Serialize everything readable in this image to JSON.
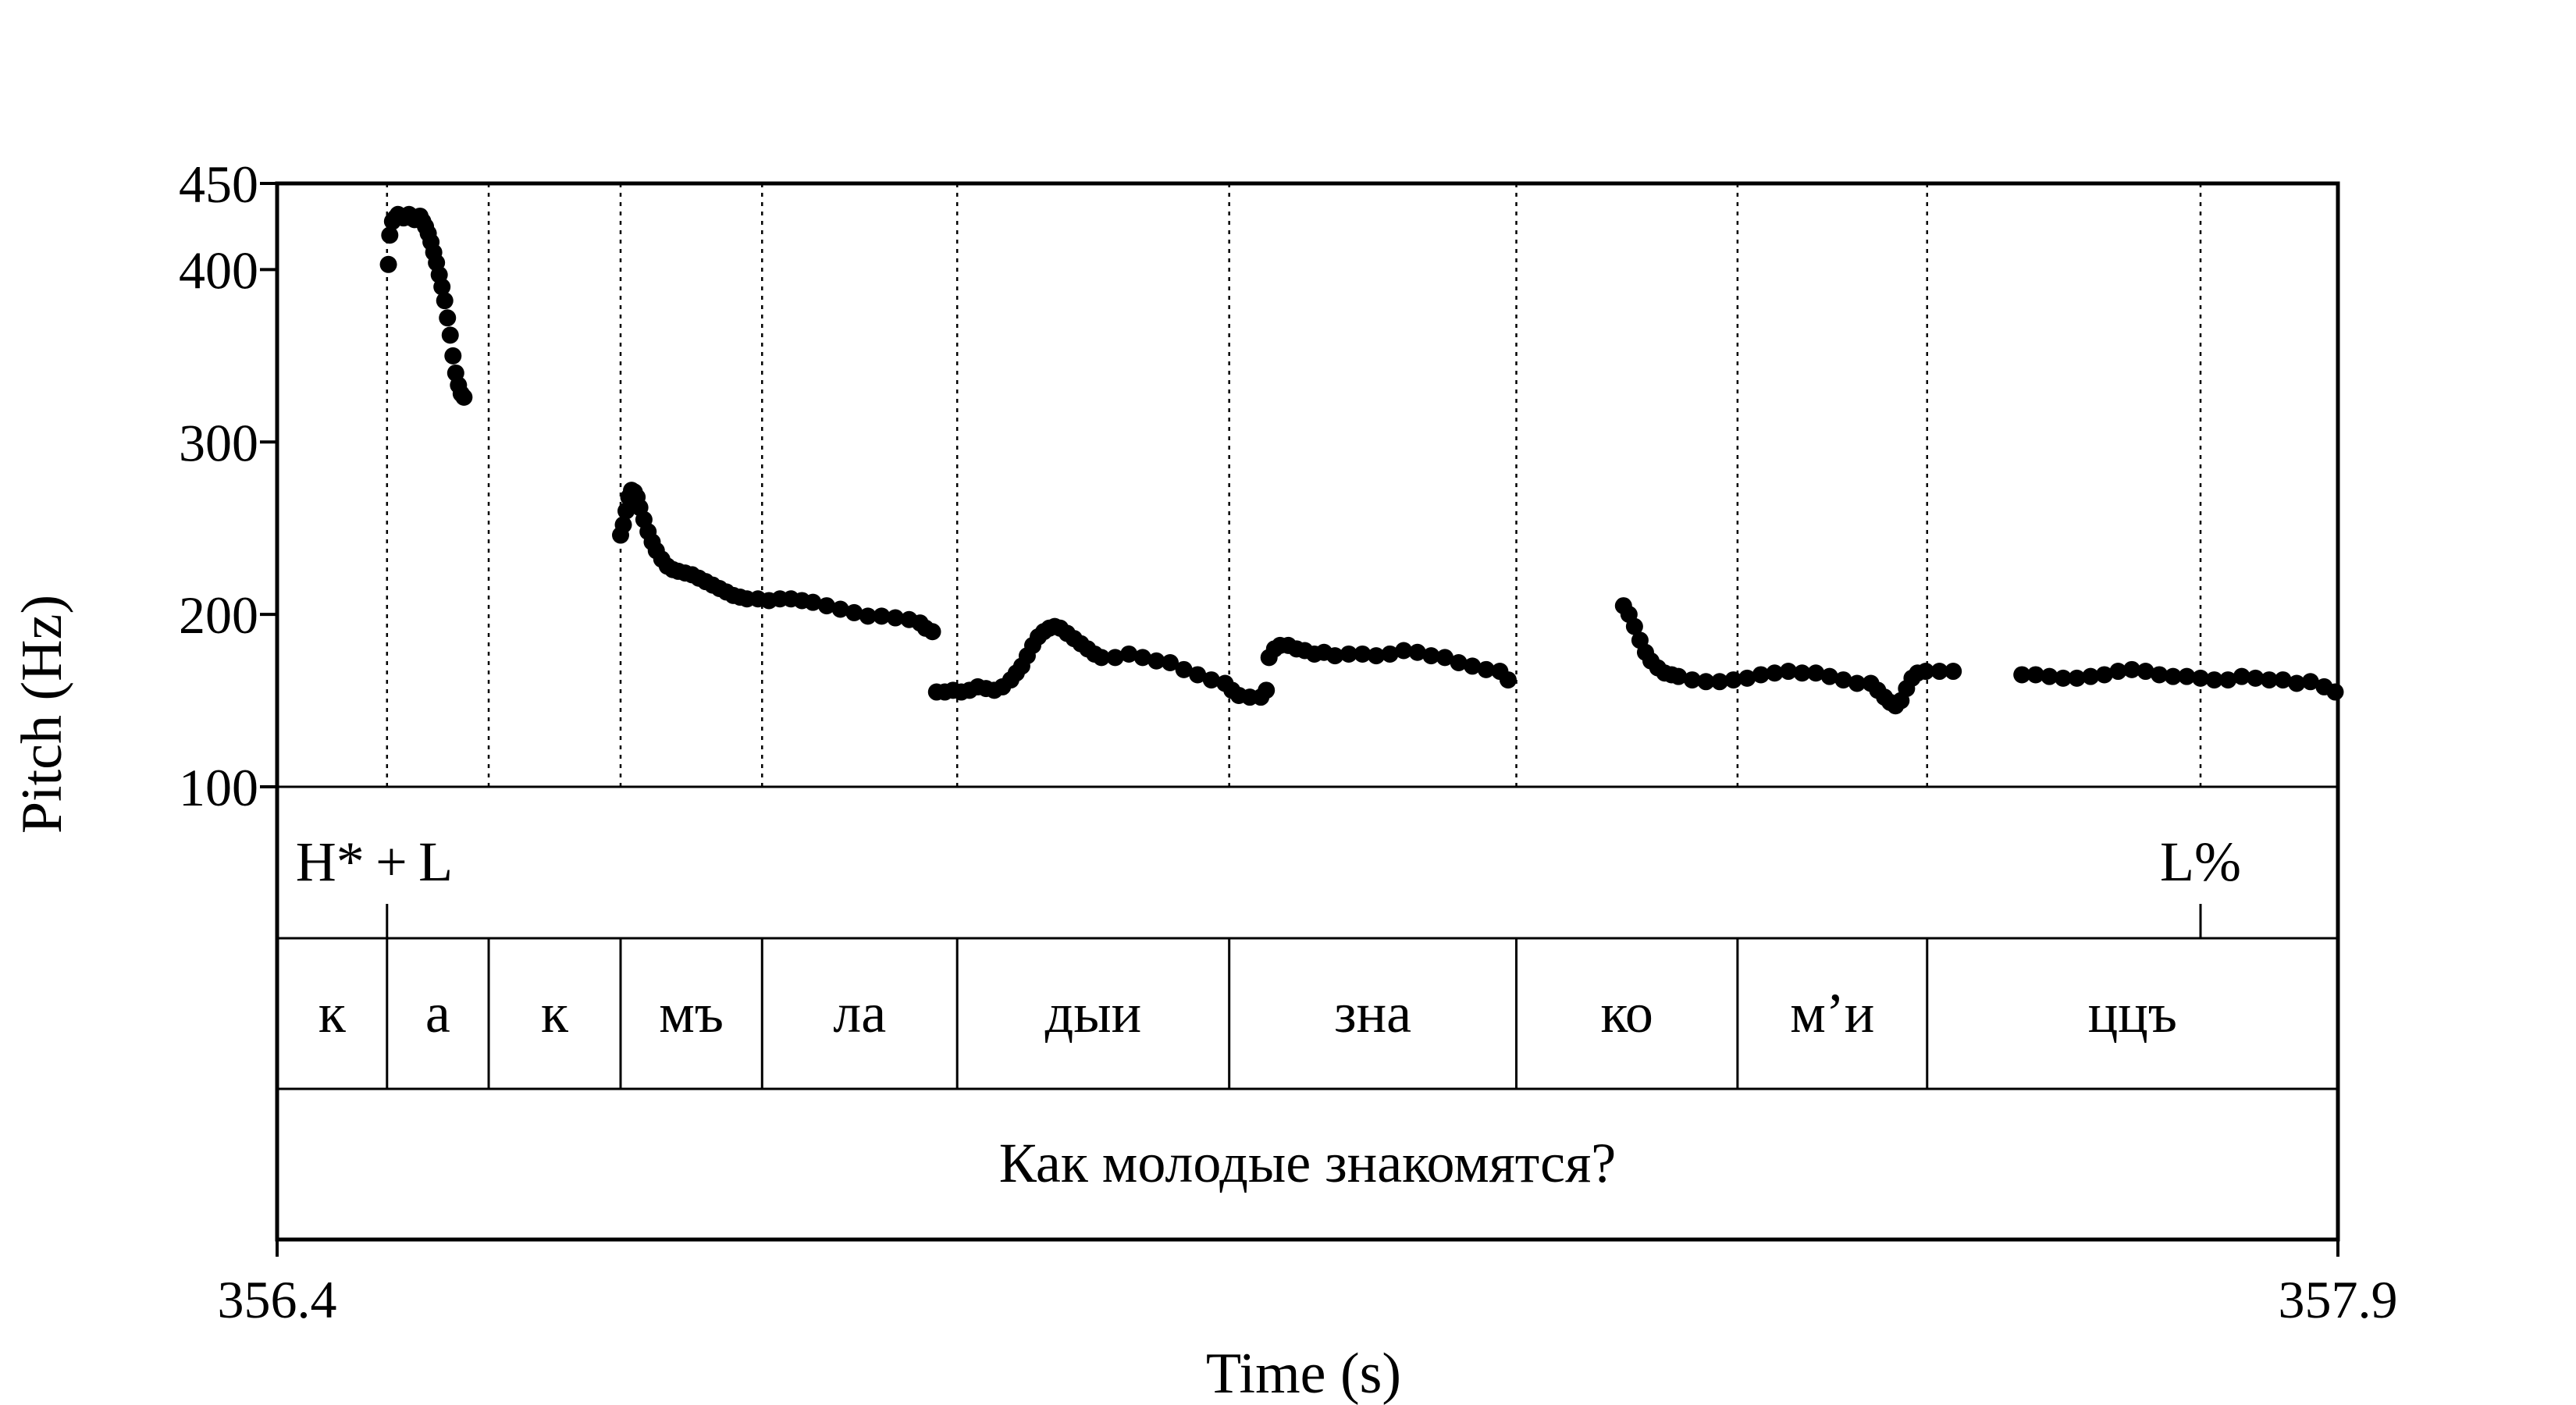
{
  "chart_data": {
    "type": "scatter",
    "title": "",
    "xlabel": "Time (s)",
    "ylabel": "Pitch (Hz)",
    "xlim": [
      356.4,
      357.9
    ],
    "ylim": [
      100,
      450
    ],
    "xtick_labels": [
      "356.4",
      "357.9"
    ],
    "ytick_labels": [
      "100",
      "200",
      "300",
      "400",
      "450"
    ],
    "yticks": [
      100,
      200,
      300,
      400,
      450
    ],
    "grid": false,
    "marker_color": "#000000",
    "series": [
      {
        "values": [
          [
            356.481,
            403
          ],
          [
            356.482,
            420
          ],
          [
            356.484,
            428
          ],
          [
            356.486,
            430
          ],
          [
            356.488,
            432
          ],
          [
            356.49,
            431
          ],
          [
            356.492,
            430
          ],
          [
            356.494,
            431
          ],
          [
            356.496,
            432
          ],
          [
            356.498,
            430
          ],
          [
            356.5,
            429
          ],
          [
            356.502,
            430
          ],
          [
            356.504,
            431
          ],
          [
            356.506,
            428
          ],
          [
            356.508,
            425
          ],
          [
            356.51,
            421
          ],
          [
            356.512,
            416
          ],
          [
            356.514,
            410
          ],
          [
            356.516,
            404
          ],
          [
            356.518,
            397
          ],
          [
            356.52,
            390
          ],
          [
            356.522,
            382
          ],
          [
            356.524,
            372
          ],
          [
            356.526,
            362
          ],
          [
            356.528,
            350
          ],
          [
            356.53,
            340
          ],
          [
            356.532,
            333
          ],
          [
            356.534,
            328
          ],
          [
            356.536,
            326
          ],
          [
            356.65,
            246
          ],
          [
            356.652,
            252
          ],
          [
            356.654,
            260
          ],
          [
            356.656,
            268
          ],
          [
            356.658,
            272
          ],
          [
            356.66,
            271
          ],
          [
            356.662,
            268
          ],
          [
            356.664,
            262
          ],
          [
            356.667,
            255
          ],
          [
            356.67,
            248
          ],
          [
            356.673,
            242
          ],
          [
            356.676,
            237
          ],
          [
            356.68,
            232
          ],
          [
            356.684,
            228
          ],
          [
            356.688,
            226
          ],
          [
            356.692,
            225
          ],
          [
            356.697,
            224
          ],
          [
            356.702,
            223
          ],
          [
            356.707,
            221
          ],
          [
            356.712,
            219
          ],
          [
            356.717,
            217
          ],
          [
            356.722,
            215
          ],
          [
            356.727,
            213
          ],
          [
            356.732,
            211
          ],
          [
            356.737,
            210
          ],
          [
            356.742,
            209
          ],
          [
            356.75,
            209
          ],
          [
            356.758,
            208
          ],
          [
            356.766,
            209
          ],
          [
            356.774,
            209
          ],
          [
            356.782,
            208
          ],
          [
            356.79,
            207
          ],
          [
            356.8,
            205
          ],
          [
            356.81,
            203
          ],
          [
            356.82,
            201
          ],
          [
            356.83,
            199
          ],
          [
            356.84,
            199
          ],
          [
            356.85,
            198
          ],
          [
            356.86,
            197
          ],
          [
            356.868,
            195
          ],
          [
            356.872,
            192
          ],
          [
            356.877,
            190
          ],
          [
            356.88,
            155
          ],
          [
            356.886,
            155
          ],
          [
            356.892,
            156
          ],
          [
            356.898,
            155
          ],
          [
            356.904,
            156
          ],
          [
            356.91,
            158
          ],
          [
            356.916,
            157
          ],
          [
            356.922,
            156
          ],
          [
            356.928,
            158
          ],
          [
            356.934,
            162
          ],
          [
            356.938,
            166
          ],
          [
            356.942,
            170
          ],
          [
            356.946,
            176
          ],
          [
            356.95,
            182
          ],
          [
            356.954,
            187
          ],
          [
            356.958,
            190
          ],
          [
            356.962,
            192
          ],
          [
            356.966,
            193
          ],
          [
            356.97,
            192
          ],
          [
            356.975,
            189
          ],
          [
            356.98,
            186
          ],
          [
            356.985,
            183
          ],
          [
            356.99,
            180
          ],
          [
            356.995,
            177
          ],
          [
            357.0,
            175
          ],
          [
            357.01,
            175
          ],
          [
            357.02,
            177
          ],
          [
            357.03,
            175
          ],
          [
            357.04,
            173
          ],
          [
            357.05,
            172
          ],
          [
            357.06,
            168
          ],
          [
            357.07,
            165
          ],
          [
            357.08,
            162
          ],
          [
            357.09,
            160
          ],
          [
            357.095,
            156
          ],
          [
            357.1,
            153
          ],
          [
            357.108,
            152
          ],
          [
            357.116,
            152
          ],
          [
            357.12,
            156
          ],
          [
            357.122,
            175
          ],
          [
            357.126,
            180
          ],
          [
            357.13,
            182
          ],
          [
            357.136,
            182
          ],
          [
            357.142,
            180
          ],
          [
            357.148,
            179
          ],
          [
            357.155,
            177
          ],
          [
            357.162,
            178
          ],
          [
            357.17,
            176
          ],
          [
            357.18,
            177
          ],
          [
            357.19,
            177
          ],
          [
            357.2,
            176
          ],
          [
            357.21,
            177
          ],
          [
            357.22,
            179
          ],
          [
            357.23,
            178
          ],
          [
            357.24,
            176
          ],
          [
            357.25,
            175
          ],
          [
            357.26,
            172
          ],
          [
            357.27,
            170
          ],
          [
            357.28,
            168
          ],
          [
            357.29,
            167
          ],
          [
            357.296,
            162
          ],
          [
            357.38,
            205
          ],
          [
            357.384,
            200
          ],
          [
            357.388,
            193
          ],
          [
            357.392,
            185
          ],
          [
            357.396,
            178
          ],
          [
            357.4,
            173
          ],
          [
            357.405,
            169
          ],
          [
            357.41,
            166
          ],
          [
            357.415,
            165
          ],
          [
            357.42,
            164
          ],
          [
            357.43,
            162
          ],
          [
            357.44,
            161
          ],
          [
            357.45,
            161
          ],
          [
            357.46,
            162
          ],
          [
            357.47,
            163
          ],
          [
            357.48,
            165
          ],
          [
            357.49,
            166
          ],
          [
            357.5,
            167
          ],
          [
            357.51,
            166
          ],
          [
            357.52,
            166
          ],
          [
            357.53,
            164
          ],
          [
            357.54,
            162
          ],
          [
            357.55,
            160
          ],
          [
            357.56,
            160
          ],
          [
            357.565,
            156
          ],
          [
            357.57,
            152
          ],
          [
            357.574,
            149
          ],
          [
            357.578,
            147
          ],
          [
            357.582,
            150
          ],
          [
            357.586,
            157
          ],
          [
            357.59,
            163
          ],
          [
            357.594,
            166
          ],
          [
            357.6,
            167
          ],
          [
            357.61,
            167
          ],
          [
            357.62,
            167
          ],
          [
            357.67,
            165
          ],
          [
            357.68,
            165
          ],
          [
            357.69,
            164
          ],
          [
            357.7,
            163
          ],
          [
            357.71,
            163
          ],
          [
            357.72,
            164
          ],
          [
            357.73,
            165
          ],
          [
            357.74,
            167
          ],
          [
            357.75,
            168
          ],
          [
            357.76,
            167
          ],
          [
            357.77,
            165
          ],
          [
            357.78,
            164
          ],
          [
            357.79,
            164
          ],
          [
            357.8,
            163
          ],
          [
            357.81,
            162
          ],
          [
            357.82,
            162
          ],
          [
            357.83,
            164
          ],
          [
            357.84,
            163
          ],
          [
            357.85,
            162
          ],
          [
            357.86,
            162
          ],
          [
            357.87,
            160
          ],
          [
            357.88,
            161
          ],
          [
            357.89,
            158
          ],
          [
            357.898,
            155
          ]
        ]
      }
    ],
    "boundaries": [
      356.48,
      356.554,
      356.65,
      356.753,
      356.895,
      357.093,
      357.302,
      357.463,
      357.601,
      357.8
    ],
    "tiers": [
      {
        "name": "tones",
        "labels": [
          {
            "text": "H* + L",
            "t": 356.401,
            "anchor": "start",
            "marker": 356.48
          },
          {
            "text": "L%",
            "t": 357.8,
            "anchor": "middle",
            "marker": 357.8
          }
        ]
      },
      {
        "name": "syllables",
        "intervals": [
          {
            "start": 356.4,
            "end": 356.48,
            "text": "к"
          },
          {
            "start": 356.48,
            "end": 356.554,
            "text": "а"
          },
          {
            "start": 356.554,
            "end": 356.65,
            "text": "к"
          },
          {
            "start": 356.65,
            "end": 356.753,
            "text": "мъ"
          },
          {
            "start": 356.753,
            "end": 356.895,
            "text": "ла"
          },
          {
            "start": 356.895,
            "end": 357.093,
            "text": "дыи"
          },
          {
            "start": 357.093,
            "end": 357.302,
            "text": "зна"
          },
          {
            "start": 357.302,
            "end": 357.463,
            "text": "ко"
          },
          {
            "start": 357.463,
            "end": 357.601,
            "text": "м’и"
          },
          {
            "start": 357.601,
            "end": 357.9,
            "text": "ццъ"
          }
        ]
      },
      {
        "name": "sentence",
        "intervals": [
          {
            "start": 356.4,
            "end": 357.9,
            "text": "Как молодые знакомятся?"
          }
        ]
      }
    ]
  }
}
